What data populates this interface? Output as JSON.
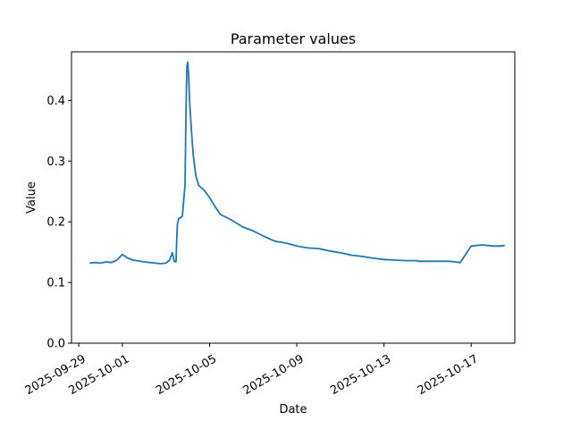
{
  "chart_data": {
    "type": "line",
    "title": "Parameter values",
    "xlabel": "Date",
    "ylabel": "Value",
    "xlim": [
      "2025-09-28T16:00",
      "2025-10-19T00:00"
    ],
    "ylim": [
      0.0,
      0.48
    ],
    "grid": false,
    "line_color": "#1f77b4",
    "x_ticks": [
      "2025-09-29",
      "2025-10-01",
      "2025-10-05",
      "2025-10-09",
      "2025-10-13",
      "2025-10-17"
    ],
    "y_ticks": [
      "0.0",
      "0.1",
      "0.2",
      "0.3",
      "0.4"
    ],
    "series": [
      {
        "x": [
          "2025-09-29T12:00",
          "2025-09-29T18:00",
          "2025-09-30T00:00",
          "2025-09-30T06:00",
          "2025-09-30T12:00",
          "2025-09-30T18:00",
          "2025-10-01T00:00",
          "2025-10-01T06:00",
          "2025-10-01T12:00",
          "2025-10-02T00:00",
          "2025-10-02T12:00",
          "2025-10-02T18:00",
          "2025-10-03T00:00",
          "2025-10-03T04:00",
          "2025-10-03T06:00",
          "2025-10-03T07:00",
          "2025-10-03T09:00",
          "2025-10-03T11:00",
          "2025-10-03T12:00",
          "2025-10-03T12:30",
          "2025-10-03T14:00",
          "2025-10-03T18:00",
          "2025-10-03T21:00",
          "2025-10-03T22:00",
          "2025-10-03T23:00",
          "2025-10-04T00:00",
          "2025-10-04T01:00",
          "2025-10-04T02:00",
          "2025-10-04T04:00",
          "2025-10-04T06:00",
          "2025-10-04T09:00",
          "2025-10-04T12:00",
          "2025-10-04T18:00",
          "2025-10-05T00:00",
          "2025-10-05T06:00",
          "2025-10-05T12:00",
          "2025-10-06T00:00",
          "2025-10-06T12:00",
          "2025-10-07T00:00",
          "2025-10-07T12:00",
          "2025-10-08T00:00",
          "2025-10-08T12:00",
          "2025-10-09T00:00",
          "2025-10-09T12:00",
          "2025-10-10T00:00",
          "2025-10-10T12:00",
          "2025-10-11T00:00",
          "2025-10-11T12:00",
          "2025-10-12T00:00",
          "2025-10-12T12:00",
          "2025-10-13T00:00",
          "2025-10-13T12:00",
          "2025-10-14T00:00",
          "2025-10-14T12:00",
          "2025-10-14T14:00",
          "2025-10-15T00:00",
          "2025-10-15T12:00",
          "2025-10-16T00:00",
          "2025-10-16T12:00",
          "2025-10-17T00:00",
          "2025-10-17T12:00",
          "2025-10-18T00:00",
          "2025-10-18T07:00",
          "2025-10-18T13:00"
        ],
        "y": [
          0.132,
          0.133,
          0.132,
          0.134,
          0.133,
          0.137,
          0.146,
          0.14,
          0.137,
          0.134,
          0.132,
          0.131,
          0.132,
          0.137,
          0.145,
          0.149,
          0.135,
          0.134,
          0.176,
          0.195,
          0.205,
          0.209,
          0.26,
          0.38,
          0.456,
          0.463,
          0.44,
          0.4,
          0.35,
          0.31,
          0.275,
          0.26,
          0.252,
          0.24,
          0.225,
          0.212,
          0.203,
          0.192,
          0.185,
          0.176,
          0.168,
          0.165,
          0.16,
          0.157,
          0.156,
          0.152,
          0.149,
          0.145,
          0.143,
          0.14,
          0.138,
          0.137,
          0.136,
          0.136,
          0.135,
          0.135,
          0.135,
          0.135,
          0.133,
          0.16,
          0.162,
          0.16,
          0.16,
          0.161
        ]
      }
    ]
  }
}
